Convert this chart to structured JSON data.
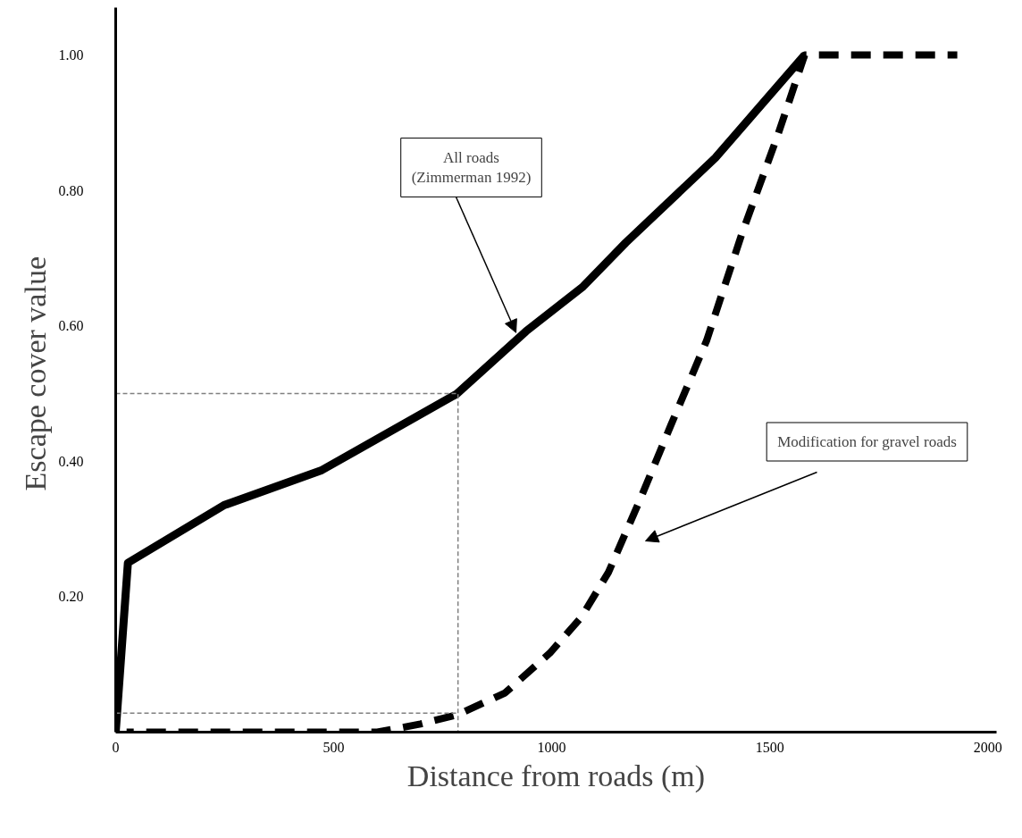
{
  "chart_data": {
    "type": "line",
    "xlabel": "Distance from roads (m)",
    "ylabel": "Escape cover  value",
    "xlim": [
      0,
      2020
    ],
    "ylim": [
      0,
      1.07
    ],
    "xticks": [
      0,
      500,
      1000,
      1500,
      2000
    ],
    "yticks": [
      {
        "value": 0.2,
        "label": "0.20"
      },
      {
        "value": 0.4,
        "label": "0.40"
      },
      {
        "value": 0.6,
        "label": "0.60"
      },
      {
        "value": 0.8,
        "label": "0.80"
      },
      {
        "value": 1.0,
        "label": "1.00"
      }
    ],
    "grid": false,
    "series": [
      {
        "color": "#000000",
        "line_style": "solid",
        "x": [
          0,
          28,
          248,
          473,
          781,
          941,
          1070,
          1170,
          1375,
          1580
        ],
        "values": [
          0,
          0.25,
          0.335,
          0.387,
          0.499,
          0.592,
          0.657,
          0.723,
          0.848,
          1.0
        ]
      },
      {
        "color": "#000000",
        "line_style": "dashed",
        "x": [
          25,
          600,
          699,
          785,
          893,
          996,
          1068,
          1130,
          1201,
          1273,
          1355,
          1436,
          1518,
          1580,
          1930
        ],
        "values": [
          0,
          0,
          0.012,
          0.026,
          0.058,
          0.117,
          0.17,
          0.236,
          0.341,
          0.453,
          0.578,
          0.736,
          0.881,
          1.0,
          1.0
        ]
      },
      {
        "color": "#808080",
        "line_style": "dotted",
        "x": [
          0,
          785,
          785
        ],
        "values": [
          0.5,
          0.5,
          0
        ]
      },
      {
        "color": "#808080",
        "line_style": "dotted",
        "x": [
          0,
          785
        ],
        "values": [
          0.028,
          0.028
        ]
      }
    ],
    "annotations": [
      {
        "text": "All roads\n(Zimmerman 1992)",
        "x": 918,
        "y": 0.59
      },
      "Modification for gravel roads"
    ]
  }
}
